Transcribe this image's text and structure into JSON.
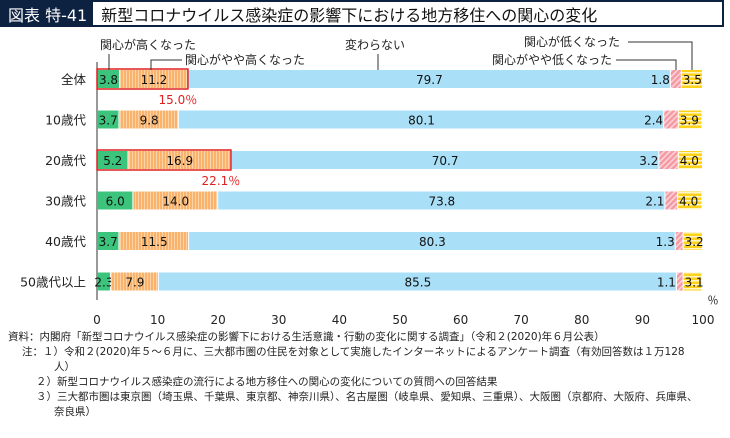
{
  "header": {
    "tag": "図表 特-41",
    "title": "新型コロナウイルス感染症の影響下における地方移住への関心の変化"
  },
  "chart_data": {
    "type": "bar",
    "stacked": true,
    "orientation": "horizontal",
    "categories": [
      "全体",
      "10歳代",
      "20歳代",
      "30歳代",
      "40歳代",
      "50歳代以上"
    ],
    "series": [
      {
        "name": "関心が高くなった",
        "color": "#3cc47c",
        "values": [
          3.8,
          3.7,
          5.2,
          6.0,
          3.7,
          2.3
        ]
      },
      {
        "name": "関心がやや高くなった",
        "color": "#f9b36c",
        "values": [
          11.2,
          9.8,
          16.9,
          14.0,
          11.5,
          7.9
        ]
      },
      {
        "name": "変わらない",
        "color": "#a9e0f8",
        "values": [
          79.7,
          80.1,
          70.7,
          73.8,
          80.3,
          85.5
        ]
      },
      {
        "name": "関心がやや低くなった",
        "color": "#f49aa5",
        "values": [
          1.8,
          2.4,
          3.2,
          2.1,
          1.3,
          1.1
        ]
      },
      {
        "name": "関心が低くなった",
        "color": "#ffd21a",
        "values": [
          3.5,
          3.9,
          4.0,
          4.0,
          3.2,
          3.1
        ]
      }
    ],
    "highlights": [
      {
        "category": "全体",
        "label": "15.0％"
      },
      {
        "category": "20歳代",
        "label": "22.1％"
      }
    ],
    "xlim": [
      0,
      100
    ],
    "xticks": [
      0,
      10,
      20,
      30,
      40,
      50,
      60,
      70,
      80,
      90,
      100
    ],
    "xunit": "％"
  },
  "notes": [
    "資料：内閣府「新型コロナウイルス感染症の影響下における生活意識・行動の変化に関する調査」（令和２(2020)年６月公表）",
    "注：１）令和２(2020)年５〜６月に、三大都市圏の住民を対象として実施したインターネットによるアンケート調査（有効回答数は１万128",
    "人）",
    "２）新型コロナウイルス感染症の流行による地方移住への関心の変化についての質問への回答結果",
    "３）三大都市圏は東京圏（埼玉県、千葉県、東京都、神奈川県）、名古屋圏（岐阜県、愛知県、三重県）、大阪圏（京都府、大阪府、兵庫県、",
    "奈良県）"
  ]
}
